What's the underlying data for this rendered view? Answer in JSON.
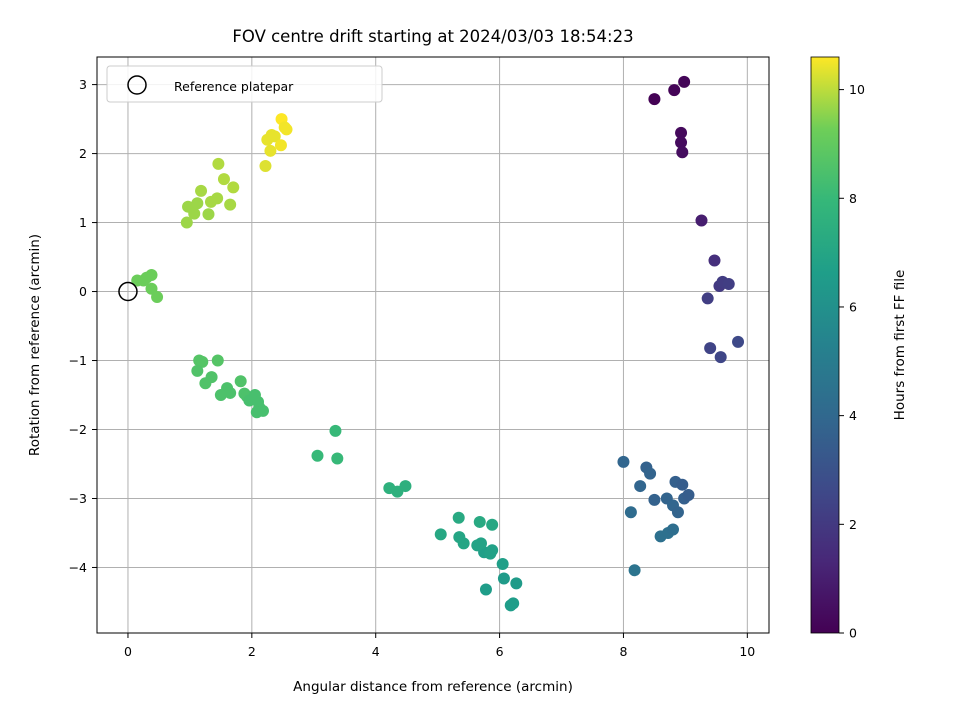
{
  "chart_data": {
    "type": "scatter",
    "title": "FOV centre drift starting at 2024/03/03 18:54:23",
    "xlabel": "Angular distance from reference (arcmin)",
    "ylabel": "Rotation from reference (arcmin)",
    "xlim": [
      -0.5,
      10.35
    ],
    "ylim": [
      -4.95,
      3.4
    ],
    "xticks": [
      0,
      2,
      4,
      6,
      8,
      10
    ],
    "yticks": [
      -4,
      -3,
      -2,
      -1,
      0,
      1,
      2,
      3
    ],
    "grid": true,
    "colormap": "viridis",
    "colorbar": {
      "label": "Hours from first FF file",
      "range": [
        0,
        10.6
      ],
      "ticks": [
        0,
        2,
        4,
        6,
        8,
        10
      ]
    },
    "legend": {
      "position": "top-left",
      "entries": [
        {
          "label": "Reference platepar",
          "marker": "open-circle"
        }
      ]
    },
    "reference_point": {
      "x": 0,
      "y": 0
    },
    "points": [
      {
        "x": 8.5,
        "y": 2.79,
        "c": 0.05
      },
      {
        "x": 8.82,
        "y": 2.92,
        "c": 0.1
      },
      {
        "x": 8.98,
        "y": 3.04,
        "c": 0.15
      },
      {
        "x": 8.93,
        "y": 2.3,
        "c": 0.3
      },
      {
        "x": 8.93,
        "y": 2.16,
        "c": 0.35
      },
      {
        "x": 8.95,
        "y": 2.02,
        "c": 0.4
      },
      {
        "x": 9.26,
        "y": 1.03,
        "c": 1.0
      },
      {
        "x": 9.47,
        "y": 0.45,
        "c": 1.6
      },
      {
        "x": 9.55,
        "y": 0.08,
        "c": 2.0
      },
      {
        "x": 9.6,
        "y": 0.14,
        "c": 2.1
      },
      {
        "x": 9.7,
        "y": 0.11,
        "c": 2.2
      },
      {
        "x": 9.36,
        "y": -0.1,
        "c": 2.2
      },
      {
        "x": 9.4,
        "y": -0.82,
        "c": 2.4
      },
      {
        "x": 9.57,
        "y": -0.95,
        "c": 2.5
      },
      {
        "x": 9.85,
        "y": -0.73,
        "c": 2.6
      },
      {
        "x": 8.0,
        "y": -2.47,
        "c": 3.9
      },
      {
        "x": 8.37,
        "y": -2.55,
        "c": 3.7
      },
      {
        "x": 8.43,
        "y": -2.64,
        "c": 3.8
      },
      {
        "x": 8.27,
        "y": -2.82,
        "c": 3.9
      },
      {
        "x": 8.5,
        "y": -3.02,
        "c": 3.7
      },
      {
        "x": 8.7,
        "y": -3.0,
        "c": 3.8
      },
      {
        "x": 8.84,
        "y": -2.76,
        "c": 3.6
      },
      {
        "x": 8.95,
        "y": -2.8,
        "c": 3.5
      },
      {
        "x": 8.98,
        "y": -3.0,
        "c": 3.6
      },
      {
        "x": 9.05,
        "y": -2.95,
        "c": 3.5
      },
      {
        "x": 8.8,
        "y": -3.1,
        "c": 3.9
      },
      {
        "x": 8.88,
        "y": -3.2,
        "c": 3.8
      },
      {
        "x": 8.12,
        "y": -3.2,
        "c": 4.2
      },
      {
        "x": 8.6,
        "y": -3.55,
        "c": 4.4
      },
      {
        "x": 8.72,
        "y": -3.5,
        "c": 4.4
      },
      {
        "x": 8.8,
        "y": -3.45,
        "c": 4.3
      },
      {
        "x": 8.18,
        "y": -4.04,
        "c": 4.6
      },
      {
        "x": 6.18,
        "y": -4.55,
        "c": 6.6
      },
      {
        "x": 6.22,
        "y": -4.52,
        "c": 6.6
      },
      {
        "x": 6.07,
        "y": -4.16,
        "c": 6.5
      },
      {
        "x": 6.27,
        "y": -4.23,
        "c": 6.5
      },
      {
        "x": 5.78,
        "y": -4.32,
        "c": 6.6
      },
      {
        "x": 6.05,
        "y": -3.95,
        "c": 6.7
      },
      {
        "x": 5.75,
        "y": -3.78,
        "c": 6.7
      },
      {
        "x": 5.85,
        "y": -3.8,
        "c": 6.8
      },
      {
        "x": 5.88,
        "y": -3.75,
        "c": 6.8
      },
      {
        "x": 5.7,
        "y": -3.65,
        "c": 6.9
      },
      {
        "x": 5.64,
        "y": -3.68,
        "c": 6.9
      },
      {
        "x": 5.42,
        "y": -3.65,
        "c": 7.0
      },
      {
        "x": 5.35,
        "y": -3.56,
        "c": 7.0
      },
      {
        "x": 5.05,
        "y": -3.52,
        "c": 7.1
      },
      {
        "x": 5.34,
        "y": -3.28,
        "c": 7.2
      },
      {
        "x": 5.68,
        "y": -3.34,
        "c": 7.2
      },
      {
        "x": 5.88,
        "y": -3.38,
        "c": 7.1
      },
      {
        "x": 4.22,
        "y": -2.85,
        "c": 7.6
      },
      {
        "x": 4.35,
        "y": -2.9,
        "c": 7.6
      },
      {
        "x": 4.48,
        "y": -2.82,
        "c": 7.5
      },
      {
        "x": 3.06,
        "y": -2.38,
        "c": 8.0
      },
      {
        "x": 3.38,
        "y": -2.42,
        "c": 8.0
      },
      {
        "x": 3.35,
        "y": -2.02,
        "c": 8.0
      },
      {
        "x": 1.15,
        "y": -1.0,
        "c": 8.7
      },
      {
        "x": 1.2,
        "y": -1.02,
        "c": 8.7
      },
      {
        "x": 1.45,
        "y": -1.0,
        "c": 8.7
      },
      {
        "x": 1.12,
        "y": -1.15,
        "c": 8.6
      },
      {
        "x": 1.35,
        "y": -1.24,
        "c": 8.6
      },
      {
        "x": 1.25,
        "y": -1.33,
        "c": 8.6
      },
      {
        "x": 1.6,
        "y": -1.4,
        "c": 8.5
      },
      {
        "x": 1.65,
        "y": -1.47,
        "c": 8.5
      },
      {
        "x": 1.5,
        "y": -1.5,
        "c": 8.5
      },
      {
        "x": 1.82,
        "y": -1.3,
        "c": 8.6
      },
      {
        "x": 1.88,
        "y": -1.48,
        "c": 8.5
      },
      {
        "x": 1.92,
        "y": -1.52,
        "c": 8.5
      },
      {
        "x": 1.96,
        "y": -1.58,
        "c": 8.4
      },
      {
        "x": 2.05,
        "y": -1.5,
        "c": 8.4
      },
      {
        "x": 2.1,
        "y": -1.6,
        "c": 8.4
      },
      {
        "x": 2.12,
        "y": -1.68,
        "c": 8.4
      },
      {
        "x": 2.08,
        "y": -1.75,
        "c": 8.4
      },
      {
        "x": 2.18,
        "y": -1.73,
        "c": 8.4
      },
      {
        "x": 0.15,
        "y": 0.16,
        "c": 9.2
      },
      {
        "x": 0.25,
        "y": 0.16,
        "c": 9.2
      },
      {
        "x": 0.3,
        "y": 0.2,
        "c": 9.2
      },
      {
        "x": 0.38,
        "y": 0.24,
        "c": 9.2
      },
      {
        "x": 0.38,
        "y": 0.04,
        "c": 9.2
      },
      {
        "x": 0.47,
        "y": -0.08,
        "c": 9.2
      },
      {
        "x": 0.95,
        "y": 1.0,
        "c": 9.7
      },
      {
        "x": 0.97,
        "y": 1.23,
        "c": 9.7
      },
      {
        "x": 1.07,
        "y": 1.13,
        "c": 9.7
      },
      {
        "x": 1.12,
        "y": 1.28,
        "c": 9.7
      },
      {
        "x": 1.18,
        "y": 1.46,
        "c": 9.8
      },
      {
        "x": 1.3,
        "y": 1.12,
        "c": 9.7
      },
      {
        "x": 1.34,
        "y": 1.3,
        "c": 9.8
      },
      {
        "x": 1.44,
        "y": 1.35,
        "c": 9.8
      },
      {
        "x": 1.46,
        "y": 1.85,
        "c": 9.9
      },
      {
        "x": 1.55,
        "y": 1.63,
        "c": 9.9
      },
      {
        "x": 1.65,
        "y": 1.26,
        "c": 9.8
      },
      {
        "x": 1.7,
        "y": 1.51,
        "c": 9.9
      },
      {
        "x": 2.22,
        "y": 1.82,
        "c": 10.3
      },
      {
        "x": 2.25,
        "y": 2.2,
        "c": 10.4
      },
      {
        "x": 2.32,
        "y": 2.27,
        "c": 10.4
      },
      {
        "x": 2.3,
        "y": 2.04,
        "c": 10.4
      },
      {
        "x": 2.37,
        "y": 2.25,
        "c": 10.4
      },
      {
        "x": 2.47,
        "y": 2.12,
        "c": 10.5
      },
      {
        "x": 2.48,
        "y": 2.5,
        "c": 10.6
      },
      {
        "x": 2.53,
        "y": 2.38,
        "c": 10.5
      },
      {
        "x": 2.56,
        "y": 2.35,
        "c": 10.5
      }
    ]
  }
}
